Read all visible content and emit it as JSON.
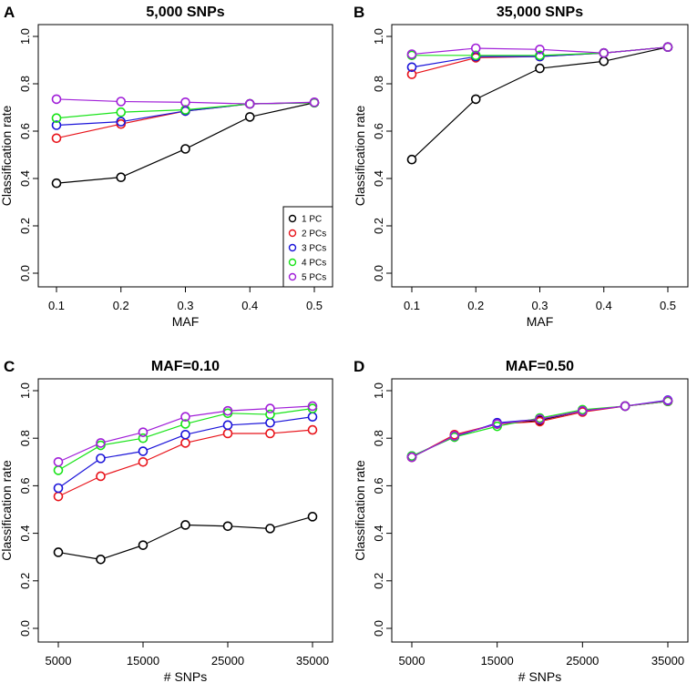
{
  "series_colors": {
    "1 PC": "#000000",
    "2 PCs": "#e8141b",
    "3 PCs": "#1b14d9",
    "4 PCs": "#18e318",
    "5 PCs": "#a01ed8"
  },
  "legend": {
    "entries": [
      "1 PC",
      "2 PCs",
      "3 PCs",
      "4 PCs",
      "5 PCs"
    ]
  },
  "chart_data": [
    {
      "id": "A",
      "letter": "A",
      "type": "line",
      "title": "5,000 SNPs",
      "xlabel": "MAF",
      "ylabel": "Classification rate",
      "x": [
        0.1,
        0.2,
        0.3,
        0.4,
        0.5
      ],
      "xticks": [
        0.1,
        0.2,
        0.3,
        0.4,
        0.5
      ],
      "xtick_labels": [
        "0.1",
        "0.2",
        "0.3",
        "0.4",
        "0.5"
      ],
      "xlim": [
        0.1,
        0.5
      ],
      "yticks": [
        0.0,
        0.2,
        0.4,
        0.6,
        0.8,
        1.0
      ],
      "ytick_labels": [
        "0.0",
        "0.2",
        "0.4",
        "0.6",
        "0.8",
        "1.0"
      ],
      "ylim": [
        0,
        1
      ],
      "legend_position": "bottom-right",
      "series": [
        {
          "name": "1 PC",
          "values": [
            0.38,
            0.405,
            0.525,
            0.66,
            0.72
          ]
        },
        {
          "name": "2 PCs",
          "values": [
            0.57,
            0.63,
            0.685,
            0.715,
            0.72
          ]
        },
        {
          "name": "3 PCs",
          "values": [
            0.625,
            0.64,
            0.685,
            0.715,
            0.72
          ]
        },
        {
          "name": "4 PCs",
          "values": [
            0.655,
            0.68,
            0.69,
            0.715,
            0.72
          ]
        },
        {
          "name": "5 PCs",
          "values": [
            0.735,
            0.725,
            0.722,
            0.715,
            0.722
          ]
        }
      ]
    },
    {
      "id": "B",
      "letter": "B",
      "type": "line",
      "title": "35,000 SNPs",
      "xlabel": "MAF",
      "ylabel": "Classification rate",
      "x": [
        0.1,
        0.2,
        0.3,
        0.4,
        0.5
      ],
      "xticks": [
        0.1,
        0.2,
        0.3,
        0.4,
        0.5
      ],
      "xtick_labels": [
        "0.1",
        "0.2",
        "0.3",
        "0.4",
        "0.5"
      ],
      "xlim": [
        0.1,
        0.5
      ],
      "yticks": [
        0.0,
        0.2,
        0.4,
        0.6,
        0.8,
        1.0
      ],
      "ytick_labels": [
        "0.0",
        "0.2",
        "0.4",
        "0.6",
        "0.8",
        "1.0"
      ],
      "ylim": [
        0,
        1
      ],
      "series": [
        {
          "name": "1 PC",
          "values": [
            0.48,
            0.735,
            0.865,
            0.895,
            0.955
          ]
        },
        {
          "name": "2 PCs",
          "values": [
            0.84,
            0.91,
            0.915,
            0.93,
            0.955
          ]
        },
        {
          "name": "3 PCs",
          "values": [
            0.87,
            0.915,
            0.915,
            0.93,
            0.955
          ]
        },
        {
          "name": "4 PCs",
          "values": [
            0.92,
            0.92,
            0.92,
            0.93,
            0.955
          ]
        },
        {
          "name": "5 PCs",
          "values": [
            0.925,
            0.95,
            0.945,
            0.93,
            0.955
          ]
        }
      ]
    },
    {
      "id": "C",
      "letter": "C",
      "type": "line",
      "title": "MAF=0.10",
      "xlabel": "# SNPs",
      "ylabel": "Classification rate",
      "x": [
        5000,
        10000,
        15000,
        20000,
        25000,
        30000,
        35000
      ],
      "xticks": [
        5000,
        15000,
        25000,
        35000
      ],
      "xtick_labels": [
        "5000",
        "15000",
        "25000",
        "35000"
      ],
      "xlim": [
        5000,
        35000
      ],
      "yticks": [
        0.0,
        0.2,
        0.4,
        0.6,
        0.8,
        1.0
      ],
      "ytick_labels": [
        "0.0",
        "0.2",
        "0.4",
        "0.6",
        "0.8",
        "1.0"
      ],
      "ylim": [
        0,
        1
      ],
      "series": [
        {
          "name": "1 PC",
          "values": [
            0.32,
            0.29,
            0.35,
            0.435,
            0.43,
            0.42,
            0.47
          ]
        },
        {
          "name": "2 PCs",
          "values": [
            0.555,
            0.64,
            0.7,
            0.78,
            0.82,
            0.82,
            0.835
          ]
        },
        {
          "name": "3 PCs",
          "values": [
            0.59,
            0.715,
            0.745,
            0.815,
            0.855,
            0.865,
            0.89
          ]
        },
        {
          "name": "4 PCs",
          "values": [
            0.665,
            0.77,
            0.8,
            0.86,
            0.905,
            0.9,
            0.925
          ]
        },
        {
          "name": "5 PCs",
          "values": [
            0.7,
            0.78,
            0.825,
            0.89,
            0.915,
            0.925,
            0.935
          ]
        }
      ]
    },
    {
      "id": "D",
      "letter": "D",
      "type": "line",
      "title": "MAF=0.50",
      "xlabel": "# SNPs",
      "ylabel": "Classification rate",
      "x": [
        5000,
        10000,
        15000,
        20000,
        25000,
        30000,
        35000
      ],
      "xticks": [
        5000,
        15000,
        25000,
        35000
      ],
      "xtick_labels": [
        "5000",
        "15000",
        "25000",
        "35000"
      ],
      "xlim": [
        5000,
        35000
      ],
      "yticks": [
        0.0,
        0.2,
        0.4,
        0.6,
        0.8,
        1.0
      ],
      "ytick_labels": [
        "0.0",
        "0.2",
        "0.4",
        "0.6",
        "0.8",
        "1.0"
      ],
      "ylim": [
        0,
        1
      ],
      "series": [
        {
          "name": "1 PC",
          "values": [
            0.72,
            0.81,
            0.86,
            0.875,
            0.915,
            0.935,
            0.955
          ]
        },
        {
          "name": "2 PCs",
          "values": [
            0.72,
            0.815,
            0.86,
            0.87,
            0.91,
            0.935,
            0.955
          ]
        },
        {
          "name": "3 PCs",
          "values": [
            0.725,
            0.805,
            0.865,
            0.88,
            0.915,
            0.935,
            0.96
          ]
        },
        {
          "name": "4 PCs",
          "values": [
            0.725,
            0.805,
            0.85,
            0.885,
            0.92,
            0.935,
            0.955
          ]
        },
        {
          "name": "5 PCs",
          "values": [
            0.72,
            0.81,
            0.86,
            0.88,
            0.915,
            0.935,
            0.958
          ]
        }
      ]
    }
  ]
}
